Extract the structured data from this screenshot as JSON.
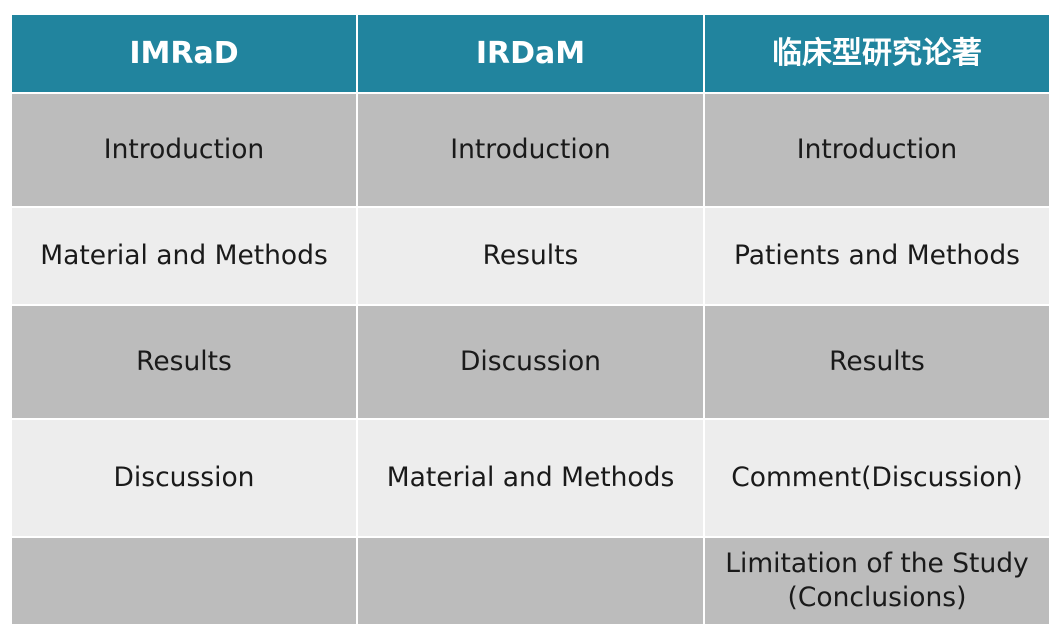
{
  "headers": [
    "IMRaD",
    "IRDaM",
    "临床型研究论著"
  ],
  "rows": [
    [
      "Introduction",
      "Introduction",
      "Introduction"
    ],
    [
      "Material and Methods",
      "Results",
      "Patients and Methods"
    ],
    [
      "Results",
      "Discussion",
      "Results"
    ],
    [
      "Discussion",
      "Material and Methods",
      "Comment(Discussion)"
    ],
    [
      "",
      "",
      "Limitation of the Study\n(Conclusions)"
    ]
  ],
  "colors": {
    "header_bg": "#21849e",
    "row_dark": "#bcbcbc",
    "row_light": "#ededed"
  }
}
